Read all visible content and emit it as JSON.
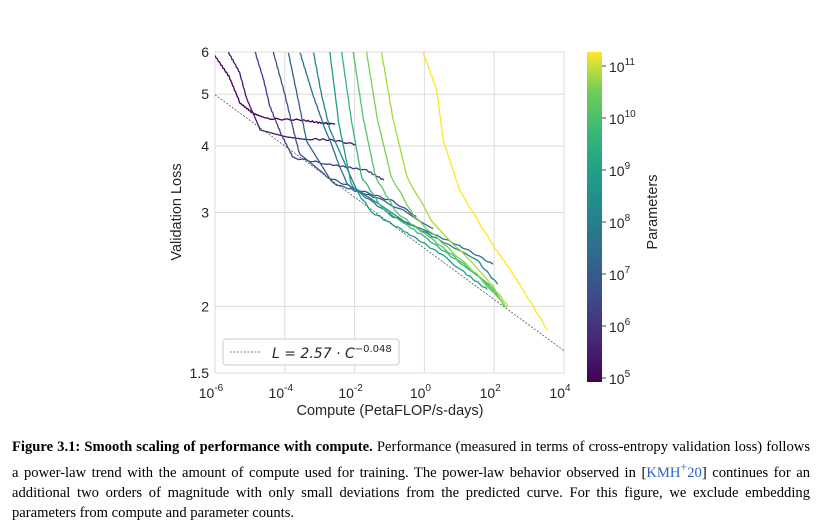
{
  "chart_data": {
    "type": "line",
    "xlabel": "Compute (PetaFLOP/s-days)",
    "ylabel": "Validation Loss",
    "xscale": "log",
    "yscale": "log",
    "xlim_log10": [
      -6,
      4
    ],
    "ylim": [
      1.5,
      6
    ],
    "x_tick_exponents": [
      "-6",
      "-4",
      "-2",
      "0",
      "2",
      "4"
    ],
    "x_tick_base": "10",
    "y_ticks": [
      "6",
      "5",
      "4",
      "3",
      "2",
      "1.5"
    ],
    "y_tick_values": [
      6,
      5,
      4,
      3,
      2,
      1.5
    ],
    "grid": true,
    "legend": {
      "position": "bottom-left",
      "label_prefix": "L = 2.57 · C",
      "label_exponent": "−0.048"
    },
    "fit_line": {
      "coefficient": 2.57,
      "exponent": -0.048,
      "style": "dashed",
      "color": "#555555"
    },
    "colorbar": {
      "label": "Parameters",
      "scale": "log",
      "tick_base": "10",
      "tick_exponents": [
        "11",
        "10",
        "9",
        "8",
        "7",
        "6",
        "5"
      ],
      "colormap": "viridis"
    },
    "series_note": "points are [log10(compute), validation loss]",
    "series": [
      {
        "color": "#440154",
        "points": [
          [
            -6,
            5.9
          ],
          [
            -5.6,
            5.4
          ],
          [
            -5.28,
            4.81
          ],
          [
            -4.9,
            4.6
          ],
          [
            -4.5,
            4.5
          ],
          [
            -3.5,
            4.47
          ],
          [
            -3,
            4.42
          ],
          [
            -2.56,
            4.4
          ]
        ]
      },
      {
        "color": "#481a6c",
        "points": [
          [
            -5.62,
            6
          ],
          [
            -5.3,
            5.5
          ],
          [
            -5.09,
            4.9
          ],
          [
            -4.71,
            4.3
          ],
          [
            -3.95,
            4.15
          ],
          [
            -3.2,
            4.12
          ],
          [
            -2.6,
            4.1
          ],
          [
            -1.96,
            4.02
          ]
        ]
      },
      {
        "color": "#433e85",
        "points": [
          [
            -4.85,
            6
          ],
          [
            -4.6,
            5.3
          ],
          [
            -4.43,
            4.75
          ],
          [
            -4.1,
            4.2
          ],
          [
            -3.76,
            3.8
          ],
          [
            -2.8,
            3.7
          ],
          [
            -1.66,
            3.6
          ],
          [
            -1.16,
            3.45
          ]
        ]
      },
      {
        "color": "#3b528b",
        "points": [
          [
            -4.33,
            6
          ],
          [
            -4.0,
            5.0
          ],
          [
            -3.76,
            4.3
          ],
          [
            -3.57,
            3.85
          ],
          [
            -2.8,
            3.5
          ],
          [
            -1.85,
            3.3
          ],
          [
            -0.9,
            3.15
          ],
          [
            -0.23,
            2.95
          ]
        ]
      },
      {
        "color": "#33638d",
        "points": [
          [
            -3.9,
            6
          ],
          [
            -3.65,
            5.0
          ],
          [
            -3.38,
            4.1
          ],
          [
            -2.61,
            3.4
          ],
          [
            -1.37,
            3.2
          ],
          [
            -0.5,
            3.0
          ],
          [
            0.25,
            2.8
          ]
        ]
      },
      {
        "color": "#2c728e",
        "points": [
          [
            -3.57,
            6
          ],
          [
            -3.2,
            5.0
          ],
          [
            -2.9,
            4.4
          ],
          [
            -2.23,
            3.4
          ],
          [
            -0.9,
            2.95
          ],
          [
            1.01,
            2.6
          ],
          [
            1.97,
            2.4
          ]
        ]
      },
      {
        "color": "#26828e",
        "points": [
          [
            -3.18,
            6
          ],
          [
            -2.95,
            5.0
          ],
          [
            -2.71,
            4.3
          ],
          [
            -1.94,
            3.3
          ],
          [
            -0.42,
            2.85
          ],
          [
            1.49,
            2.45
          ],
          [
            2.1,
            2.2
          ]
        ]
      },
      {
        "color": "#1f9e89",
        "points": [
          [
            -2.71,
            6
          ],
          [
            -2.45,
            4.4
          ],
          [
            -2.1,
            3.4
          ],
          [
            -1.5,
            3.0
          ],
          [
            -0.5,
            2.75
          ],
          [
            0.5,
            2.5
          ],
          [
            1.2,
            2.3
          ],
          [
            1.8,
            2.15
          ]
        ]
      },
      {
        "color": "#35b779",
        "points": [
          [
            -2.37,
            6
          ],
          [
            -2.1,
            4.5
          ],
          [
            -1.8,
            3.5
          ],
          [
            -1.2,
            3.05
          ],
          [
            0,
            2.7
          ],
          [
            1,
            2.42
          ],
          [
            1.8,
            2.2
          ],
          [
            2.2,
            2.05
          ]
        ]
      },
      {
        "color": "#54c568",
        "points": [
          [
            -2.04,
            6
          ],
          [
            -1.75,
            4.5
          ],
          [
            -1.4,
            3.5
          ],
          [
            -0.8,
            3.0
          ],
          [
            0.2,
            2.68
          ],
          [
            1.2,
            2.38
          ],
          [
            2.0,
            2.15
          ],
          [
            2.3,
            2.0
          ]
        ]
      },
      {
        "color": "#7ad151",
        "points": [
          [
            -1.66,
            6
          ],
          [
            -1.35,
            4.5
          ],
          [
            -0.95,
            3.5
          ],
          [
            -0.3,
            2.95
          ],
          [
            0.6,
            2.6
          ],
          [
            1.5,
            2.3
          ],
          [
            2.35,
            1.99
          ]
        ]
      },
      {
        "color": "#a5db36",
        "points": [
          [
            -1.23,
            6
          ],
          [
            -0.9,
            4.5
          ],
          [
            -0.5,
            3.5
          ],
          [
            0.2,
            2.9
          ],
          [
            1.0,
            2.55
          ],
          [
            1.8,
            2.25
          ],
          [
            2.4,
            2.0
          ]
        ]
      },
      {
        "color": "#fde725",
        "points": [
          [
            -0.04,
            6
          ],
          [
            0.35,
            5.1
          ],
          [
            0.54,
            4.1
          ],
          [
            1.01,
            3.3
          ],
          [
            1.97,
            2.6
          ],
          [
            2.45,
            2.35
          ],
          [
            2.92,
            2.1
          ],
          [
            3.54,
            1.8
          ]
        ]
      }
    ]
  },
  "caption": {
    "label": "Figure 3.1:",
    "title": "Smooth scaling of performance with compute.",
    "text_before_cite": "Performance (measured in terms of cross-entropy validation loss) follows a power-law trend with the amount of compute used for training. The power-law behavior observed in [",
    "cite": "KMH",
    "cite_sup": "+",
    "cite_year": "20",
    "text_after_cite": "] continues for an additional two orders of magnitude with only small deviations from the predicted curve. For this figure, we exclude embedding parameters from compute and parameter counts."
  }
}
